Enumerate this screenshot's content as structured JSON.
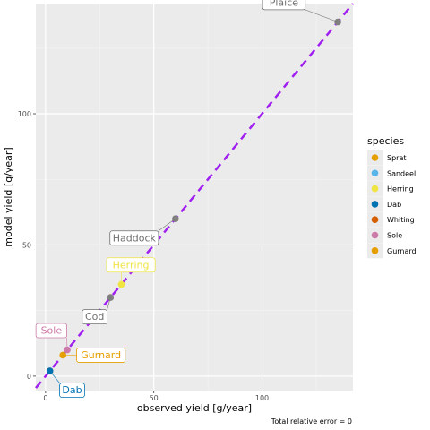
{
  "chart_data": {
    "type": "scatter",
    "xlabel": "observed yield [g/year]",
    "ylabel": "model yield [g/year]",
    "caption": "Total relative error = 0",
    "xlim": [
      -4.5,
      142
    ],
    "ylim": [
      -5.5,
      142
    ],
    "x_ticks": [
      0,
      50,
      100
    ],
    "y_ticks": [
      0,
      50,
      100
    ],
    "x_tick_labels": [
      "0",
      "50",
      "100"
    ],
    "y_tick_labels": [
      "0",
      "50",
      "100"
    ],
    "grid": true,
    "reference_line": {
      "slope": 1,
      "intercept": 0,
      "color": "#a020f0",
      "style": "dashed"
    },
    "legend": {
      "title": "species",
      "position": "right",
      "entries": [
        {
          "name": "Sprat",
          "color": "#E69F00"
        },
        {
          "name": "Sandeel",
          "color": "#56B4E9"
        },
        {
          "name": "Herring",
          "color": "#F0E442"
        },
        {
          "name": "Dab",
          "color": "#0072B2"
        },
        {
          "name": "Whiting",
          "color": "#D55E00"
        },
        {
          "name": "Sole",
          "color": "#CC79A7"
        },
        {
          "name": "Gurnard",
          "color": "#E69F00"
        }
      ]
    },
    "points": [
      {
        "name": "Plaice",
        "x": 135,
        "y": 135,
        "color": "#808080",
        "label_color": "#707070",
        "label_dx": -0.17,
        "label_dy": 0.05
      },
      {
        "name": "Haddock",
        "x": 60,
        "y": 60,
        "color": "#808080",
        "label_color": "#707070",
        "label_dx": -0.13,
        "label_dy": -0.05
      },
      {
        "name": "Herring",
        "x": 35,
        "y": 35,
        "color": "#F0E442",
        "label_color": "#F0E442",
        "label_dx": 0.03,
        "label_dy": 0.05
      },
      {
        "name": "Cod",
        "x": 30,
        "y": 30,
        "color": "#808080",
        "label_color": "#707070",
        "label_dx": -0.05,
        "label_dy": -0.05
      },
      {
        "name": "Sole",
        "x": 10,
        "y": 10,
        "color": "#CC79A7",
        "label_color": "#CC79A7",
        "label_dx": -0.05,
        "label_dy": 0.05
      },
      {
        "name": "Gurnard",
        "x": 8,
        "y": 8,
        "color": "#E69F00",
        "label_color": "#E69F00",
        "label_dx": 0.12,
        "label_dy": 0.0
      },
      {
        "name": "Whiting",
        "x": 2,
        "y": 2,
        "color": "#D55E00",
        "label_color": "#D55E00",
        "label_dx": 0,
        "label_dy": 0,
        "hide_label": true
      },
      {
        "name": "Dab",
        "x": 2,
        "y": 2,
        "color": "#0072B2",
        "label_color": "#0072B2",
        "label_dx": 0.07,
        "label_dy": -0.05
      }
    ]
  }
}
